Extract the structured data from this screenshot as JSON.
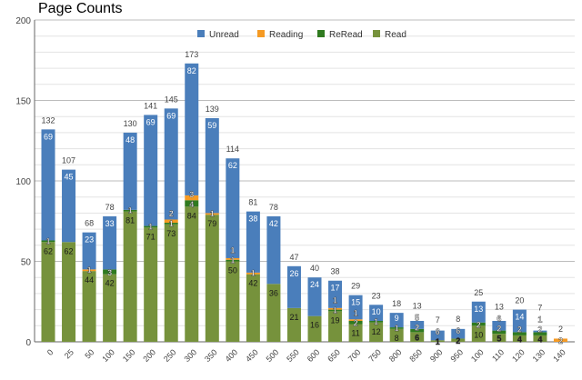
{
  "chart_data": {
    "type": "bar",
    "stacked": true,
    "title": "Page Counts",
    "xlabel": "",
    "ylabel": "",
    "ylim": [
      0,
      200
    ],
    "yticks": [
      "0",
      "50",
      "100",
      "150",
      "200"
    ],
    "legend_position": "top",
    "categories": [
      "0",
      "25",
      "50",
      "100",
      "150",
      "200",
      "250",
      "300",
      "350",
      "400",
      "450",
      "500",
      "550",
      "600",
      "650",
      "700",
      "750",
      "800",
      "850",
      "900",
      "950",
      "100",
      "110",
      "120",
      "130",
      "140"
    ],
    "series": [
      {
        "name": "Read",
        "color": "#76923c",
        "values": [
          62,
          62,
          44,
          42,
          81,
          71,
          73,
          84,
          79,
          50,
          42,
          36,
          21,
          16,
          19,
          11,
          12,
          8,
          6,
          1,
          2,
          10,
          5,
          4,
          4,
          0
        ]
      },
      {
        "name": "ReRead",
        "color": "#2f7a1f",
        "values": [
          1,
          0,
          0,
          3,
          1,
          1,
          1,
          4,
          0,
          1,
          0,
          0,
          0,
          0,
          1,
          2,
          1,
          1,
          2,
          0,
          0,
          2,
          2,
          2,
          2,
          0
        ]
      },
      {
        "name": "Reading",
        "color": "#f59a23",
        "values": [
          0,
          0,
          1,
          0,
          0,
          0,
          2,
          3,
          1,
          1,
          1,
          0,
          0,
          0,
          1,
          1,
          0,
          0,
          0,
          0,
          0,
          0,
          0,
          0,
          0,
          2
        ]
      },
      {
        "name": "Unread",
        "color": "#4a7ebb",
        "values": [
          69,
          45,
          23,
          33,
          48,
          69,
          69,
          82,
          59,
          62,
          38,
          42,
          26,
          24,
          17,
          15,
          10,
          9,
          5,
          6,
          6,
          13,
          6,
          14,
          1,
          0
        ]
      }
    ],
    "totals": [
      132,
      107,
      68,
      78,
      130,
      141,
      145,
      173,
      139,
      114,
      81,
      78,
      47,
      40,
      38,
      29,
      23,
      18,
      13,
      7,
      8,
      25,
      13,
      20,
      7,
      2
    ],
    "legend_order": [
      "Unread",
      "Reading",
      "ReRead",
      "Read"
    ]
  }
}
